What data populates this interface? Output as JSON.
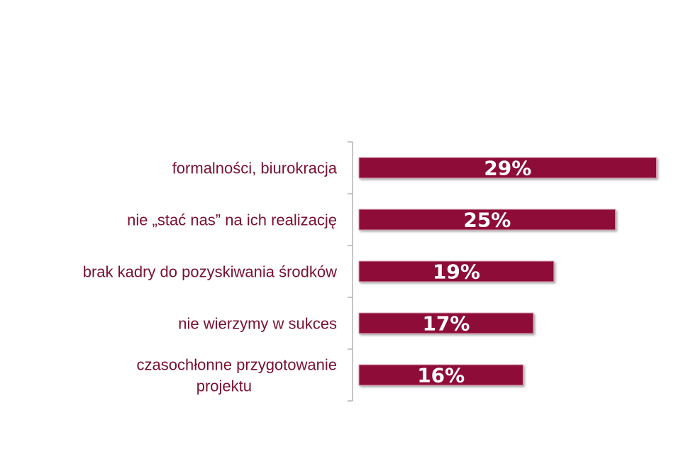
{
  "chart_data": {
    "type": "bar",
    "orientation": "horizontal",
    "categories": [
      "formalności, biurokracja",
      "nie „stać nas” na ich realizację",
      "brak kadry do pozyskiwania środków",
      "nie wierzymy w sukces",
      "czasochłonne przygotowanie projektu"
    ],
    "category_lines": [
      [
        "formalności, biurokracja"
      ],
      [
        "nie „stać nas” na ich realizację"
      ],
      [
        "brak kadry do pozyskiwania środków"
      ],
      [
        "nie wierzymy w sukces"
      ],
      [
        "czasochłonne przygotowanie",
        "projektu"
      ]
    ],
    "values": [
      29,
      25,
      19,
      17,
      16
    ],
    "value_labels": [
      "29%",
      "25%",
      "19%",
      "17%",
      "16%"
    ],
    "unit": "%",
    "xlim": [
      0,
      30
    ],
    "grid": false,
    "legend": "none",
    "bar_color": "#8e1038",
    "label_color": "#7b1030",
    "axis_color": "#a0a0a0"
  }
}
